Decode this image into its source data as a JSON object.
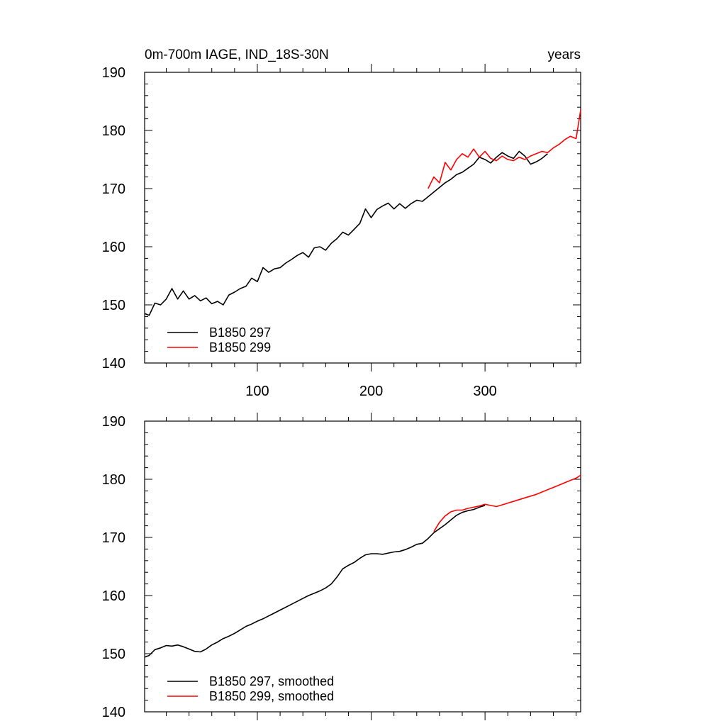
{
  "title_left": "0m-700m IAGE, IND_18S-30N",
  "title_right": "years",
  "colors": {
    "series_297": "#000000",
    "series_299": "#ff0000"
  },
  "chart_data": [
    {
      "type": "line",
      "xlim": [
        1,
        384
      ],
      "ylim": [
        140,
        190
      ],
      "yticks": [
        140,
        150,
        160,
        170,
        180,
        190
      ],
      "xticks": [
        100,
        200,
        300
      ],
      "x_tick_labels_shown": true,
      "legend_position": "bottom-left",
      "series": [
        {
          "name": "B1850 297",
          "color": "#000000",
          "points": [
            [
              1,
              148.5
            ],
            [
              5,
              148.2
            ],
            [
              10,
              150.3
            ],
            [
              15,
              150
            ],
            [
              20,
              151
            ],
            [
              25,
              152.8
            ],
            [
              30,
              151
            ],
            [
              35,
              152.4
            ],
            [
              40,
              151
            ],
            [
              45,
              151.6
            ],
            [
              50,
              150.7
            ],
            [
              55,
              151.2
            ],
            [
              60,
              150.2
            ],
            [
              65,
              150.6
            ],
            [
              70,
              150
            ],
            [
              75,
              151.7
            ],
            [
              80,
              152.2
            ],
            [
              85,
              152.8
            ],
            [
              90,
              153.2
            ],
            [
              95,
              154.6
            ],
            [
              100,
              154
            ],
            [
              105,
              156.4
            ],
            [
              110,
              155.6
            ],
            [
              115,
              156.2
            ],
            [
              120,
              156.4
            ],
            [
              125,
              157.2
            ],
            [
              130,
              157.8
            ],
            [
              135,
              158.5
            ],
            [
              140,
              159
            ],
            [
              145,
              158.2
            ],
            [
              150,
              159.8
            ],
            [
              155,
              160
            ],
            [
              160,
              159.4
            ],
            [
              165,
              160.6
            ],
            [
              170,
              161.4
            ],
            [
              175,
              162.5
            ],
            [
              180,
              162
            ],
            [
              185,
              163
            ],
            [
              190,
              164
            ],
            [
              195,
              166.5
            ],
            [
              200,
              165
            ],
            [
              205,
              166.4
            ],
            [
              210,
              167
            ],
            [
              215,
              167.5
            ],
            [
              220,
              166.5
            ],
            [
              225,
              167.4
            ],
            [
              230,
              166.6
            ],
            [
              235,
              167.4
            ],
            [
              240,
              168
            ],
            [
              245,
              167.8
            ],
            [
              250,
              168.6
            ],
            [
              255,
              169.4
            ],
            [
              260,
              170.2
            ],
            [
              265,
              171
            ],
            [
              270,
              171.6
            ],
            [
              275,
              172.4
            ],
            [
              280,
              172.8
            ],
            [
              285,
              173.5
            ],
            [
              290,
              174.2
            ],
            [
              295,
              175.4
            ],
            [
              300,
              175
            ],
            [
              305,
              174.4
            ],
            [
              310,
              175.4
            ],
            [
              315,
              176.2
            ],
            [
              320,
              175.6
            ],
            [
              325,
              175.2
            ],
            [
              330,
              176.4
            ],
            [
              335,
              175.6
            ],
            [
              340,
              174.2
            ],
            [
              345,
              174.6
            ],
            [
              350,
              175.2
            ],
            [
              355,
              176
            ]
          ]
        },
        {
          "name": "B1850 299",
          "color": "#ff0000",
          "points": [
            [
              250,
              170
            ],
            [
              255,
              172
            ],
            [
              260,
              171
            ],
            [
              265,
              174.5
            ],
            [
              270,
              173.2
            ],
            [
              275,
              175
            ],
            [
              280,
              176
            ],
            [
              285,
              175.4
            ],
            [
              290,
              176.8
            ],
            [
              295,
              175.4
            ],
            [
              300,
              176.4
            ],
            [
              305,
              175.2
            ],
            [
              310,
              174.8
            ],
            [
              315,
              175.6
            ],
            [
              320,
              175
            ],
            [
              325,
              174.8
            ],
            [
              330,
              175.4
            ],
            [
              335,
              175
            ],
            [
              340,
              175.6
            ],
            [
              345,
              176
            ],
            [
              350,
              176.4
            ],
            [
              355,
              176.2
            ],
            [
              360,
              177
            ],
            [
              365,
              177.6
            ],
            [
              370,
              178.4
            ],
            [
              375,
              179
            ],
            [
              380,
              178.6
            ],
            [
              384,
              183.5
            ]
          ]
        }
      ]
    },
    {
      "type": "line",
      "xlim": [
        1,
        384
      ],
      "ylim": [
        140,
        190
      ],
      "yticks": [
        140,
        150,
        160,
        170,
        180,
        190
      ],
      "xticks": [
        100,
        200,
        300
      ],
      "x_tick_labels_shown": false,
      "legend_position": "bottom-left",
      "series": [
        {
          "name": "B1850 297, smoothed",
          "color": "#000000",
          "points": [
            [
              1,
              149.4
            ],
            [
              5,
              149.7
            ],
            [
              10,
              150.7
            ],
            [
              15,
              151
            ],
            [
              20,
              151.4
            ],
            [
              25,
              151.3
            ],
            [
              30,
              151.5
            ],
            [
              35,
              151.2
            ],
            [
              40,
              150.8
            ],
            [
              45,
              150.4
            ],
            [
              50,
              150.3
            ],
            [
              55,
              150.8
            ],
            [
              60,
              151.5
            ],
            [
              65,
              152
            ],
            [
              70,
              152.6
            ],
            [
              75,
              153
            ],
            [
              80,
              153.5
            ],
            [
              85,
              154.1
            ],
            [
              90,
              154.7
            ],
            [
              95,
              155.1
            ],
            [
              100,
              155.6
            ],
            [
              105,
              156
            ],
            [
              110,
              156.5
            ],
            [
              115,
              157
            ],
            [
              120,
              157.5
            ],
            [
              125,
              158
            ],
            [
              130,
              158.5
            ],
            [
              135,
              159
            ],
            [
              140,
              159.5
            ],
            [
              145,
              160
            ],
            [
              150,
              160.4
            ],
            [
              155,
              160.8
            ],
            [
              160,
              161.3
            ],
            [
              165,
              162
            ],
            [
              170,
              163.2
            ],
            [
              175,
              164.6
            ],
            [
              180,
              165.2
            ],
            [
              185,
              165.7
            ],
            [
              190,
              166.4
            ],
            [
              195,
              167
            ],
            [
              200,
              167.2
            ],
            [
              205,
              167.2
            ],
            [
              210,
              167.1
            ],
            [
              215,
              167.3
            ],
            [
              220,
              167.5
            ],
            [
              225,
              167.6
            ],
            [
              230,
              167.9
            ],
            [
              235,
              168.3
            ],
            [
              240,
              168.8
            ],
            [
              245,
              169
            ],
            [
              250,
              169.8
            ],
            [
              255,
              170.8
            ],
            [
              260,
              171.5
            ],
            [
              265,
              172.2
            ],
            [
              270,
              173
            ],
            [
              275,
              173.8
            ],
            [
              280,
              174.3
            ],
            [
              285,
              174.6
            ],
            [
              290,
              174.8
            ],
            [
              295,
              175.2
            ],
            [
              300,
              175.5
            ]
          ]
        },
        {
          "name": "B1850 299, smoothed",
          "color": "#ff0000",
          "points": [
            [
              255,
              171
            ],
            [
              260,
              172.6
            ],
            [
              265,
              173.7
            ],
            [
              270,
              174.4
            ],
            [
              275,
              174.7
            ],
            [
              280,
              174.7
            ],
            [
              285,
              175
            ],
            [
              290,
              175.2
            ],
            [
              295,
              175.4
            ],
            [
              300,
              175.7
            ],
            [
              305,
              175.5
            ],
            [
              310,
              175.3
            ],
            [
              315,
              175.6
            ],
            [
              320,
              175.9
            ],
            [
              325,
              176.2
            ],
            [
              330,
              176.5
            ],
            [
              335,
              176.8
            ],
            [
              340,
              177.1
            ],
            [
              345,
              177.4
            ],
            [
              350,
              177.8
            ],
            [
              355,
              178.2
            ],
            [
              360,
              178.6
            ],
            [
              365,
              179
            ],
            [
              370,
              179.4
            ],
            [
              375,
              179.8
            ],
            [
              380,
              180.2
            ],
            [
              384,
              180.7
            ]
          ]
        }
      ]
    }
  ]
}
